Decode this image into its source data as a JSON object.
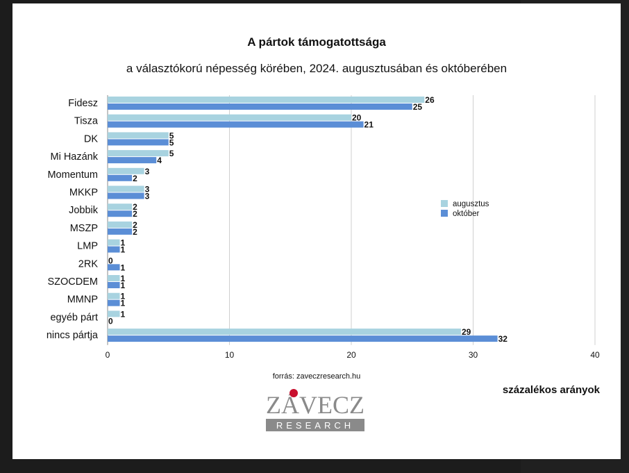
{
  "page": {
    "title": "A pártok támogatottsága",
    "subtitle": "a választókorú népesség körében, 2024. augusztusában és októberében",
    "source": "forrás: zaveczresearch.hu",
    "unit_note": "százalékos arányok",
    "logo": {
      "line1": "ZÁVECZ",
      "line2": "RESEARCH"
    }
  },
  "colors": {
    "augusztus": "#a8d3e0",
    "oktober": "#5b8ed6",
    "grid": "#cfcfcf",
    "logo_gray": "#8a8a8a",
    "logo_red": "#c8102e"
  },
  "chart_data": {
    "type": "bar",
    "orientation": "horizontal",
    "title": "A pártok támogatottsága",
    "subtitle": "a választókorú népesség körében, 2024. augusztusában és októberében",
    "categories": [
      "Fidesz",
      "Tisza",
      "DK",
      "Mi Hazánk",
      "Momentum",
      "MKKP",
      "Jobbik",
      "MSZP",
      "LMP",
      "2RK",
      "SZOCDEM",
      "MMNP",
      "egyéb párt",
      "nincs pártja"
    ],
    "series": [
      {
        "name": "augusztus",
        "values": [
          26,
          20,
          5,
          5,
          3,
          3,
          2,
          2,
          1,
          0,
          1,
          1,
          1,
          29
        ]
      },
      {
        "name": "október",
        "values": [
          25,
          21,
          5,
          4,
          2,
          3,
          2,
          2,
          1,
          1,
          1,
          1,
          0,
          32
        ]
      }
    ],
    "xlim": [
      0,
      40
    ],
    "xticks": [
      0,
      10,
      20,
      30,
      40
    ],
    "grid": true,
    "legend": "right"
  }
}
